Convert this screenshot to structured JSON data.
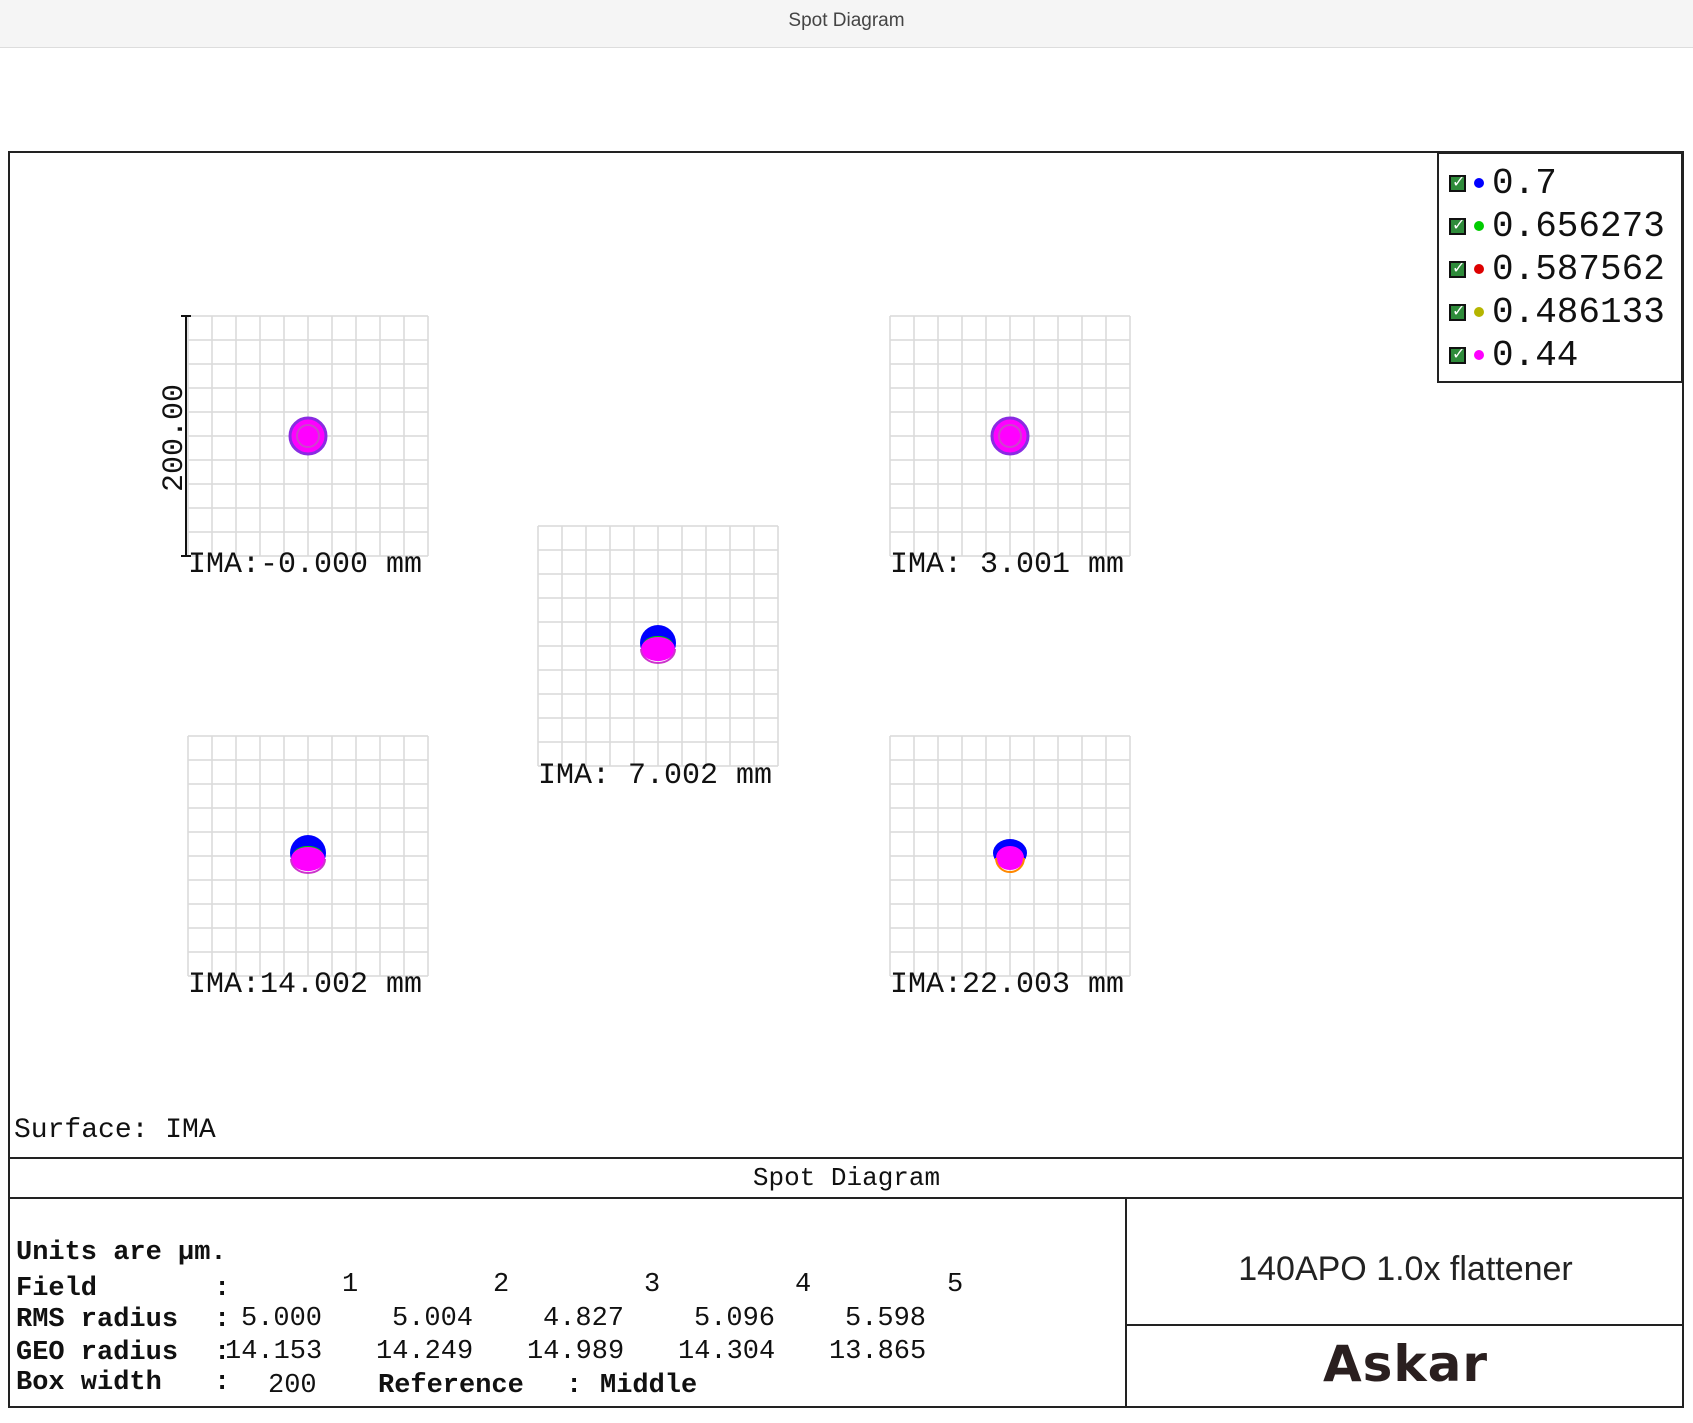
{
  "window": {
    "title": "Spot Diagram"
  },
  "legend": [
    {
      "label": "0.7",
      "color": "#0000ff"
    },
    {
      "label": "0.656273",
      "color": "#00cc00"
    },
    {
      "label": "0.587562",
      "color": "#dd0000"
    },
    {
      "label": "0.486133",
      "color": "#b5b500"
    },
    {
      "label": "0.44",
      "color": "#ff00ff"
    }
  ],
  "scale_label": "200.00",
  "spots": [
    {
      "label": "IMA:-0.000 mm"
    },
    {
      "label": "IMA: 3.001 mm"
    },
    {
      "label": "IMA: 7.002 mm"
    },
    {
      "label": "IMA:14.002 mm"
    },
    {
      "label": "IMA:22.003 mm"
    }
  ],
  "surface_label": "Surface: IMA",
  "footer": {
    "title": "Spot Diagram",
    "units": "Units are µm.",
    "field_label": "Field",
    "fields": [
      "1",
      "2",
      "3",
      "4",
      "5"
    ],
    "rms_label": "RMS radius",
    "rms": [
      "5.000",
      "5.004",
      "4.827",
      "5.096",
      "5.598"
    ],
    "geo_label": "GEO radius",
    "geo": [
      "14.153",
      "14.249",
      "14.989",
      "14.304",
      "13.865"
    ],
    "box_label": "Box width",
    "box_value": "200",
    "reference_label": "Reference",
    "reference_value": "Middle",
    "project": "140APO 1.0x flattener",
    "logo": "Askar"
  }
}
